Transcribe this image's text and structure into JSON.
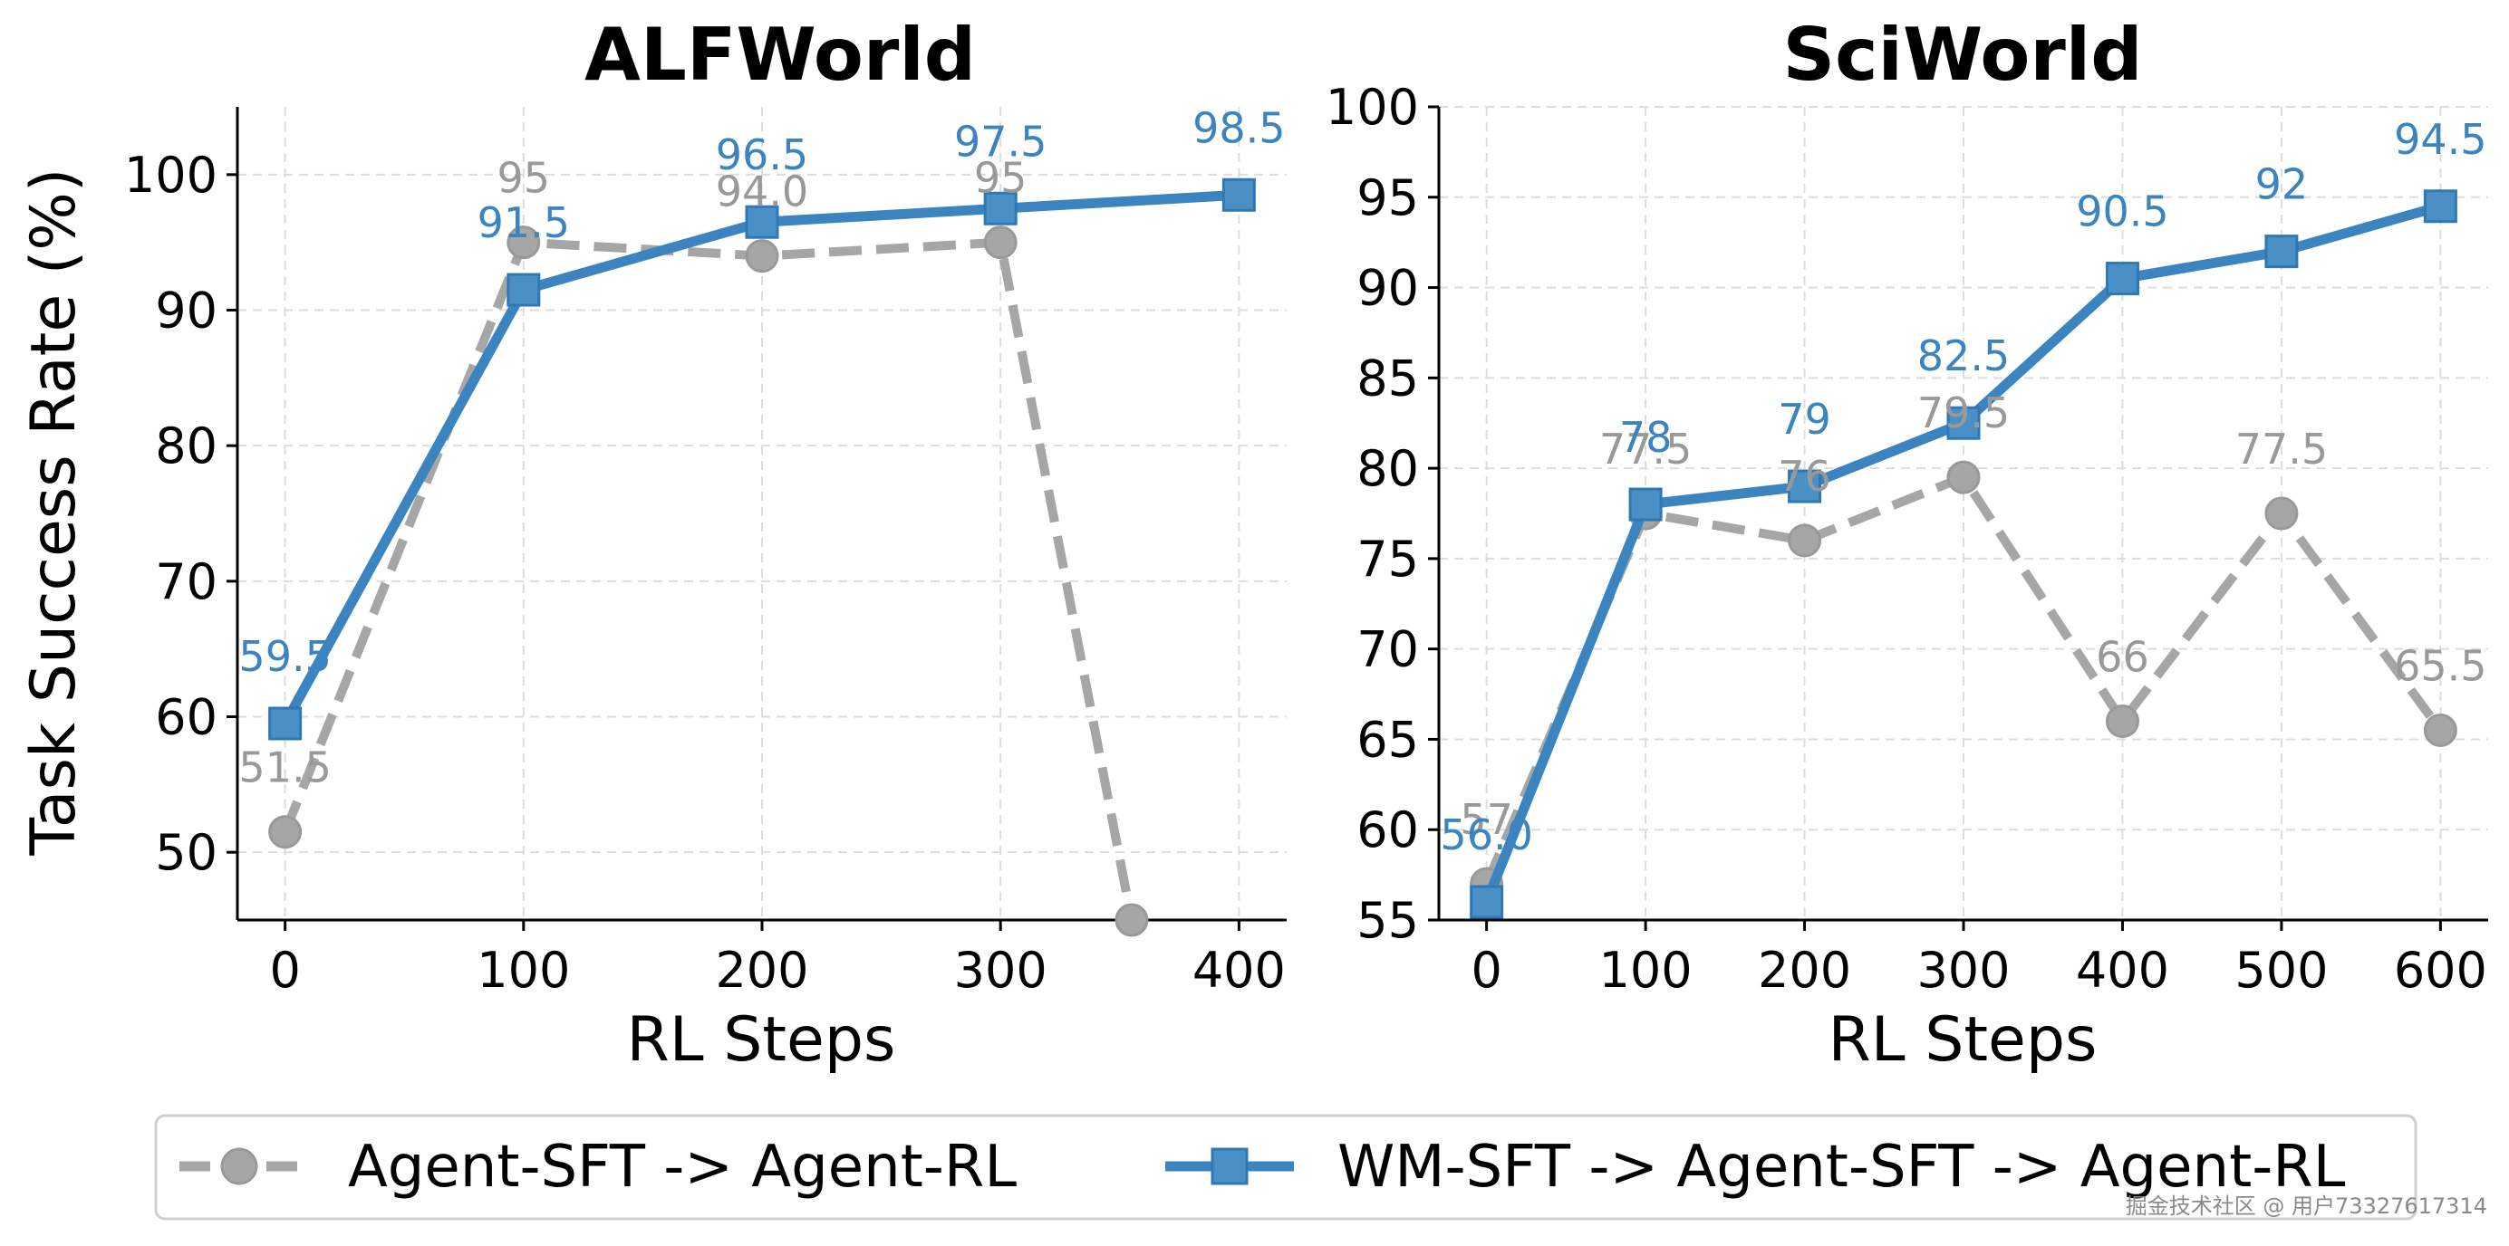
{
  "chart_data": [
    {
      "type": "line",
      "title": "ALFWorld",
      "xlabel": "RL Steps",
      "ylabel": "Task Success Rate (%)",
      "xlim": [
        -20,
        420
      ],
      "ylim": [
        45,
        105
      ],
      "xticks": [
        0,
        100,
        200,
        300,
        400
      ],
      "yticks": [
        50,
        60,
        70,
        80,
        90,
        100
      ],
      "grid": true,
      "series": [
        {
          "name": "Agent-SFT -> Agent-RL",
          "color": "#a6a6a6",
          "marker": "circle",
          "dashed": true,
          "x": [
            0,
            100,
            200,
            300,
            355
          ],
          "y": [
            51.5,
            95,
            94,
            95,
            45
          ],
          "labels": [
            "51.5",
            "95",
            "94.0",
            "95",
            ""
          ]
        },
        {
          "name": "WM-SFT -> Agent-SFT -> Agent-RL",
          "color": "#3b84bf",
          "marker": "square",
          "dashed": false,
          "x": [
            0,
            100,
            200,
            300,
            400
          ],
          "y": [
            59.5,
            91.5,
            96.5,
            97.5,
            98.5
          ],
          "labels": [
            "59.5",
            "91.5",
            "96.5",
            "97.5",
            "98.5"
          ]
        }
      ]
    },
    {
      "type": "line",
      "title": "SciWorld",
      "xlabel": "RL Steps",
      "ylabel": "",
      "xlim": [
        -30,
        630
      ],
      "ylim": [
        55,
        100
      ],
      "xticks": [
        0,
        100,
        200,
        300,
        400,
        500,
        600
      ],
      "yticks": [
        55,
        60,
        65,
        70,
        75,
        80,
        85,
        90,
        95,
        100
      ],
      "grid": true,
      "series": [
        {
          "name": "Agent-SFT -> Agent-RL",
          "color": "#a6a6a6",
          "marker": "circle",
          "dashed": true,
          "x": [
            0,
            100,
            200,
            300,
            400,
            500,
            600
          ],
          "y": [
            57,
            77.5,
            76,
            79.5,
            66,
            77.5,
            65.5
          ],
          "labels": [
            "57",
            "77.5",
            "76",
            "79.5",
            "66",
            "77.5",
            "65.5"
          ]
        },
        {
          "name": "WM-SFT -> Agent-SFT -> Agent-RL",
          "color": "#3b84bf",
          "marker": "square",
          "dashed": false,
          "x": [
            0,
            100,
            200,
            300,
            400,
            500,
            600
          ],
          "y": [
            56,
            78,
            79,
            82.5,
            90.5,
            92,
            94.5
          ],
          "labels": [
            "56.0",
            "78",
            "79",
            "82.5",
            "90.5",
            "92",
            "94.5"
          ]
        }
      ]
    }
  ],
  "legend": {
    "placement": "bottom-center",
    "entries": [
      "Agent-SFT -> Agent-RL",
      "WM-SFT -> Agent-SFT -> Agent-RL"
    ]
  },
  "watermark": "掘金技术社区 @ 用户73327617314"
}
